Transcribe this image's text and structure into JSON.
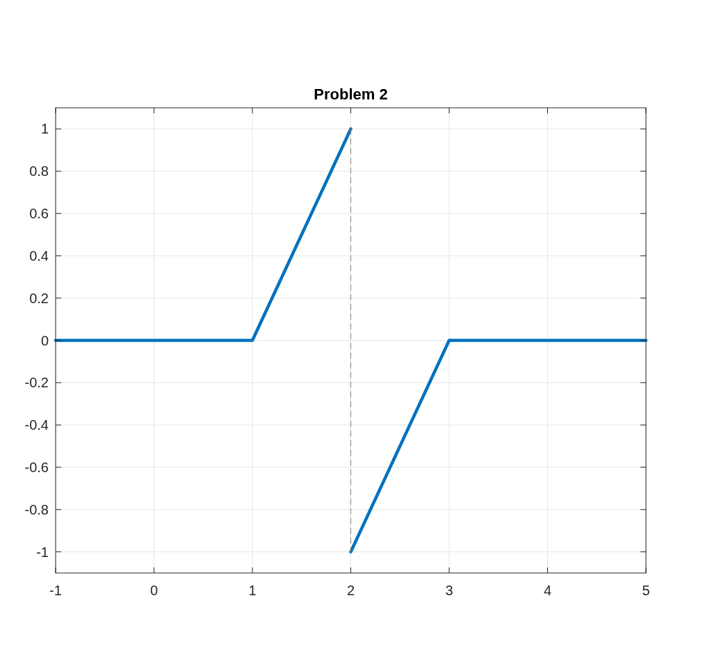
{
  "chart_data": {
    "type": "line",
    "title": "Problem 2",
    "xlim": [
      -1,
      5
    ],
    "ylim": [
      -1.1,
      1.1
    ],
    "xticks": [
      -1,
      0,
      1,
      2,
      3,
      4,
      5
    ],
    "yticks": [
      -1,
      -0.8,
      -0.6,
      -0.4,
      -0.2,
      0,
      0.2,
      0.4,
      0.6,
      0.8,
      1
    ],
    "grid": true,
    "marker": "none",
    "series": [
      {
        "color": "#0072bd",
        "x": [
          -1,
          1,
          2
        ],
        "values": [
          0,
          0,
          1
        ],
        "line_style": "solid"
      },
      {
        "color": "#0072bd",
        "x": [
          2,
          3,
          5
        ],
        "values": [
          -1,
          0,
          0
        ],
        "line_style": "solid"
      },
      {
        "color": "#7f7f7f",
        "x": [
          2,
          2
        ],
        "values": [
          1,
          -1
        ],
        "line_style": "dashed"
      }
    ]
  }
}
